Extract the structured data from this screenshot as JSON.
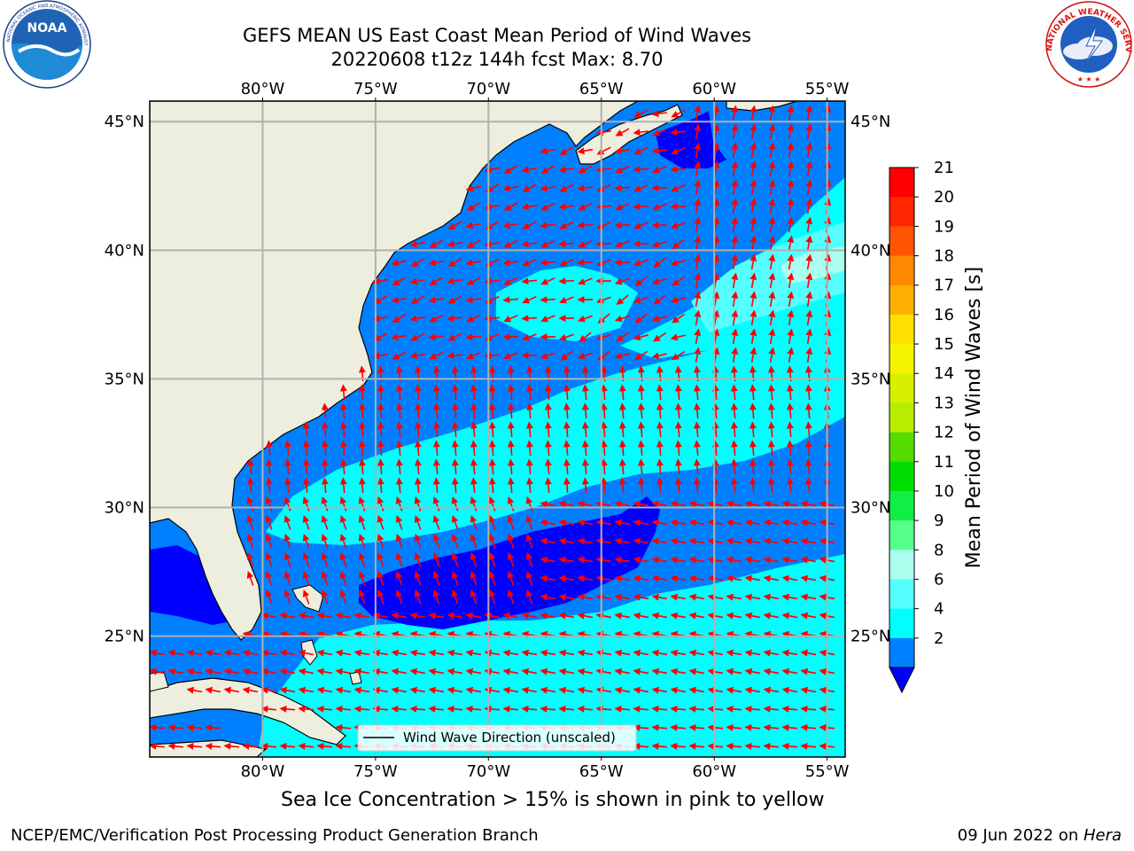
{
  "header": {
    "title_line1": "GEFS MEAN US East Coast Mean Period of Wind Waves",
    "title_line2": "20220608 t12z 144h fcst   Max: 8.70"
  },
  "logos": {
    "left": "noaa-logo",
    "left_text": "NOAA",
    "left_ring_text": "NATIONAL OCEANIC AND ATMOSPHERIC ADMINISTRATION · U.S. DEPARTMENT OF COMMERCE",
    "right": "nws-logo",
    "right_ring_text": "NATIONAL WEATHER SERVICE"
  },
  "map": {
    "lon_labels": [
      "80°W",
      "75°W",
      "70°W",
      "65°W",
      "60°W",
      "55°W"
    ],
    "lat_labels": [
      "45°N",
      "40°N",
      "35°N",
      "30°N",
      "25°N"
    ],
    "extent": {
      "lon_min": -85,
      "lon_max": -54.2,
      "lat_min": 20.3,
      "lat_max": 45.8
    },
    "legend_label": "Wind Wave Direction (unscaled)",
    "colors": {
      "land": "#eeeedf",
      "grid": "#b0b0b0",
      "arrow": "#ff0000",
      "coast": "#000000"
    }
  },
  "colorbar": {
    "label": "Mean Period of Wind Waves [s]",
    "ticks": [
      "21",
      "20",
      "19",
      "18",
      "17",
      "16",
      "15",
      "14",
      "13",
      "12",
      "11",
      "10",
      "9",
      "8",
      "6",
      "4",
      "2"
    ],
    "bins": [
      {
        "from": 20,
        "to": 21,
        "color": "#ff0000"
      },
      {
        "from": 19,
        "to": 20,
        "color": "#ff2600"
      },
      {
        "from": 18,
        "to": 19,
        "color": "#ff5500"
      },
      {
        "from": 17,
        "to": 18,
        "color": "#ff8800"
      },
      {
        "from": 16,
        "to": 17,
        "color": "#ffb000"
      },
      {
        "from": 15,
        "to": 16,
        "color": "#ffe000"
      },
      {
        "from": 14,
        "to": 15,
        "color": "#f4f400"
      },
      {
        "from": 13,
        "to": 14,
        "color": "#d6f000"
      },
      {
        "from": 12,
        "to": 13,
        "color": "#b8ec00"
      },
      {
        "from": 11,
        "to": 12,
        "color": "#55dd00"
      },
      {
        "from": 10,
        "to": 11,
        "color": "#00dd00"
      },
      {
        "from": 9,
        "to": 10,
        "color": "#11ee44"
      },
      {
        "from": 8,
        "to": 9,
        "color": "#55ff88"
      },
      {
        "from": 6,
        "to": 8,
        "color": "#aaffee"
      },
      {
        "from": 4,
        "to": 6,
        "color": "#55ffff"
      },
      {
        "from": 2,
        "to": 4,
        "color": "#00ffff"
      },
      {
        "from": 0,
        "to": 2,
        "color": "#0080ff"
      }
    ],
    "under_color": "#0000ff"
  },
  "note": "Sea Ice Concentration > 15% is shown in pink to yellow",
  "footer": {
    "left": "NCEP/EMC/Verification Post Processing Product Generation Branch",
    "date": "09 Jun 2022 on ",
    "machine": "Hera"
  }
}
